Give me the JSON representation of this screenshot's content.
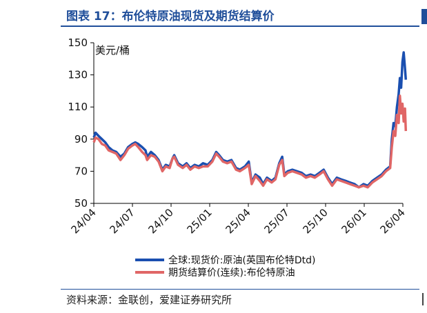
{
  "header": {
    "title": "图表 17：布伦特原油现货及期货结算价"
  },
  "footer": {
    "source": "资料来源：金联创，爱建证券研究所"
  },
  "colors": {
    "title_blue": "#1f4e9a",
    "spot_series": "#1a4fb0",
    "futures_series": "#e06666"
  },
  "chart_data": {
    "type": "line",
    "unit_label": "美元/桶",
    "ylim": [
      50,
      150
    ],
    "y_ticks": [
      50,
      70,
      90,
      110,
      130,
      150
    ],
    "x_tick_labels": [
      "24/04",
      "24/07",
      "24/10",
      "25/01",
      "25/04",
      "25/07",
      "25/10",
      "26/01",
      "26/04"
    ],
    "x_range": [
      "2024-04",
      "2026-04"
    ],
    "grid": false,
    "legend_position": "bottom",
    "series": [
      {
        "name": "全球:现货价:原油(英国布伦特Dtd)",
        "color": "#1a4fb0",
        "points": [
          [
            "2024-04-01",
            91
          ],
          [
            "2024-04-05",
            94
          ],
          [
            "2024-04-12",
            92
          ],
          [
            "2024-04-20",
            90
          ],
          [
            "2024-04-28",
            88
          ],
          [
            "2024-05-06",
            85
          ],
          [
            "2024-05-15",
            83
          ],
          [
            "2024-05-24",
            82
          ],
          [
            "2024-06-03",
            79
          ],
          [
            "2024-06-12",
            81
          ],
          [
            "2024-06-21",
            85
          ],
          [
            "2024-07-01",
            87
          ],
          [
            "2024-07-08",
            88
          ],
          [
            "2024-07-15",
            87
          ],
          [
            "2024-07-24",
            85
          ],
          [
            "2024-08-01",
            83
          ],
          [
            "2024-08-05",
            79
          ],
          [
            "2024-08-14",
            82
          ],
          [
            "2024-08-23",
            80
          ],
          [
            "2024-09-01",
            77
          ],
          [
            "2024-09-10",
            71
          ],
          [
            "2024-09-18",
            74
          ],
          [
            "2024-09-27",
            73
          ],
          [
            "2024-10-04",
            78
          ],
          [
            "2024-10-08",
            80
          ],
          [
            "2024-10-17",
            75
          ],
          [
            "2024-10-28",
            73
          ],
          [
            "2024-11-06",
            75
          ],
          [
            "2024-11-15",
            72
          ],
          [
            "2024-11-25",
            74
          ],
          [
            "2024-12-05",
            73
          ],
          [
            "2024-12-15",
            75
          ],
          [
            "2024-12-26",
            74
          ],
          [
            "2025-01-06",
            77
          ],
          [
            "2025-01-15",
            82
          ],
          [
            "2025-01-22",
            80
          ],
          [
            "2025-01-31",
            77
          ],
          [
            "2025-02-10",
            76
          ],
          [
            "2025-02-20",
            77
          ],
          [
            "2025-03-03",
            72
          ],
          [
            "2025-03-12",
            71
          ],
          [
            "2025-03-24",
            73
          ],
          [
            "2025-04-02",
            76
          ],
          [
            "2025-04-09",
            63
          ],
          [
            "2025-04-18",
            68
          ],
          [
            "2025-04-28",
            66
          ],
          [
            "2025-05-06",
            62
          ],
          [
            "2025-05-15",
            66
          ],
          [
            "2025-05-26",
            64
          ],
          [
            "2025-06-04",
            66
          ],
          [
            "2025-06-13",
            75
          ],
          [
            "2025-06-20",
            79
          ],
          [
            "2025-06-25",
            68
          ],
          [
            "2025-07-03",
            70
          ],
          [
            "2025-07-14",
            71
          ],
          [
            "2025-07-25",
            70
          ],
          [
            "2025-08-05",
            69
          ],
          [
            "2025-08-15",
            67
          ],
          [
            "2025-08-26",
            68
          ],
          [
            "2025-09-05",
            67
          ],
          [
            "2025-09-16",
            69
          ],
          [
            "2025-09-26",
            71
          ],
          [
            "2025-10-06",
            66
          ],
          [
            "2025-10-16",
            62
          ],
          [
            "2025-10-27",
            66
          ],
          [
            "2025-11-06",
            65
          ],
          [
            "2025-11-17",
            64
          ],
          [
            "2025-11-27",
            63
          ],
          [
            "2025-12-08",
            62
          ],
          [
            "2025-12-18",
            60
          ],
          [
            "2025-12-29",
            62
          ],
          [
            "2026-01-08",
            61
          ],
          [
            "2026-01-19",
            64
          ],
          [
            "2026-01-30",
            66
          ],
          [
            "2026-02-10",
            68
          ],
          [
            "2026-02-20",
            71
          ],
          [
            "2026-03-02",
            73
          ],
          [
            "2026-03-06",
            90
          ],
          [
            "2026-03-10",
            100
          ],
          [
            "2026-03-14",
            98
          ],
          [
            "2026-03-18",
            110
          ],
          [
            "2026-03-22",
            118
          ],
          [
            "2026-03-25",
            128
          ],
          [
            "2026-03-28",
            122
          ],
          [
            "2026-03-31",
            138
          ],
          [
            "2026-04-03",
            144
          ],
          [
            "2026-04-06",
            134
          ],
          [
            "2026-04-08",
            127
          ]
        ]
      },
      {
        "name": "期货结算价(连续):布伦特原油",
        "color": "#e06666",
        "points": [
          [
            "2024-04-01",
            88
          ],
          [
            "2024-04-05",
            91
          ],
          [
            "2024-04-12",
            90
          ],
          [
            "2024-04-20",
            87
          ],
          [
            "2024-04-28",
            86
          ],
          [
            "2024-05-06",
            83
          ],
          [
            "2024-05-15",
            82
          ],
          [
            "2024-05-24",
            81
          ],
          [
            "2024-06-03",
            77
          ],
          [
            "2024-06-12",
            80
          ],
          [
            "2024-06-21",
            84
          ],
          [
            "2024-07-01",
            86
          ],
          [
            "2024-07-08",
            87
          ],
          [
            "2024-07-15",
            85
          ],
          [
            "2024-07-24",
            82
          ],
          [
            "2024-08-01",
            80
          ],
          [
            "2024-08-05",
            77
          ],
          [
            "2024-08-14",
            80
          ],
          [
            "2024-08-23",
            79
          ],
          [
            "2024-09-01",
            76
          ],
          [
            "2024-09-10",
            70
          ],
          [
            "2024-09-18",
            73
          ],
          [
            "2024-09-27",
            72
          ],
          [
            "2024-10-04",
            78
          ],
          [
            "2024-10-08",
            79
          ],
          [
            "2024-10-17",
            74
          ],
          [
            "2024-10-28",
            72
          ],
          [
            "2024-11-06",
            74
          ],
          [
            "2024-11-15",
            71
          ],
          [
            "2024-11-25",
            73
          ],
          [
            "2024-12-05",
            72
          ],
          [
            "2024-12-15",
            73
          ],
          [
            "2024-12-26",
            73
          ],
          [
            "2025-01-06",
            76
          ],
          [
            "2025-01-15",
            81
          ],
          [
            "2025-01-22",
            79
          ],
          [
            "2025-01-31",
            76
          ],
          [
            "2025-02-10",
            75
          ],
          [
            "2025-02-20",
            76
          ],
          [
            "2025-03-03",
            71
          ],
          [
            "2025-03-12",
            70
          ],
          [
            "2025-03-24",
            72
          ],
          [
            "2025-04-02",
            74
          ],
          [
            "2025-04-09",
            62
          ],
          [
            "2025-04-18",
            67
          ],
          [
            "2025-04-28",
            64
          ],
          [
            "2025-05-06",
            61
          ],
          [
            "2025-05-15",
            65
          ],
          [
            "2025-05-26",
            63
          ],
          [
            "2025-06-04",
            65
          ],
          [
            "2025-06-13",
            74
          ],
          [
            "2025-06-20",
            77
          ],
          [
            "2025-06-25",
            67
          ],
          [
            "2025-07-03",
            69
          ],
          [
            "2025-07-14",
            70
          ],
          [
            "2025-07-25",
            69
          ],
          [
            "2025-08-05",
            68
          ],
          [
            "2025-08-15",
            66
          ],
          [
            "2025-08-26",
            67
          ],
          [
            "2025-09-05",
            66
          ],
          [
            "2025-09-16",
            68
          ],
          [
            "2025-09-26",
            70
          ],
          [
            "2025-10-06",
            65
          ],
          [
            "2025-10-16",
            61
          ],
          [
            "2025-10-27",
            65
          ],
          [
            "2025-11-06",
            64
          ],
          [
            "2025-11-17",
            63
          ],
          [
            "2025-11-27",
            62
          ],
          [
            "2025-12-08",
            61
          ],
          [
            "2025-12-18",
            60
          ],
          [
            "2025-12-29",
            61
          ],
          [
            "2026-01-08",
            60
          ],
          [
            "2026-01-19",
            63
          ],
          [
            "2026-01-30",
            65
          ],
          [
            "2026-02-10",
            67
          ],
          [
            "2026-02-20",
            70
          ],
          [
            "2026-03-02",
            72
          ],
          [
            "2026-03-06",
            85
          ],
          [
            "2026-03-10",
            95
          ],
          [
            "2026-03-14",
            92
          ],
          [
            "2026-03-18",
            105
          ],
          [
            "2026-03-22",
            100
          ],
          [
            "2026-03-25",
            117
          ],
          [
            "2026-03-28",
            106
          ],
          [
            "2026-03-31",
            112
          ],
          [
            "2026-04-03",
            101
          ],
          [
            "2026-04-06",
            109
          ],
          [
            "2026-04-08",
            95
          ]
        ]
      }
    ]
  }
}
